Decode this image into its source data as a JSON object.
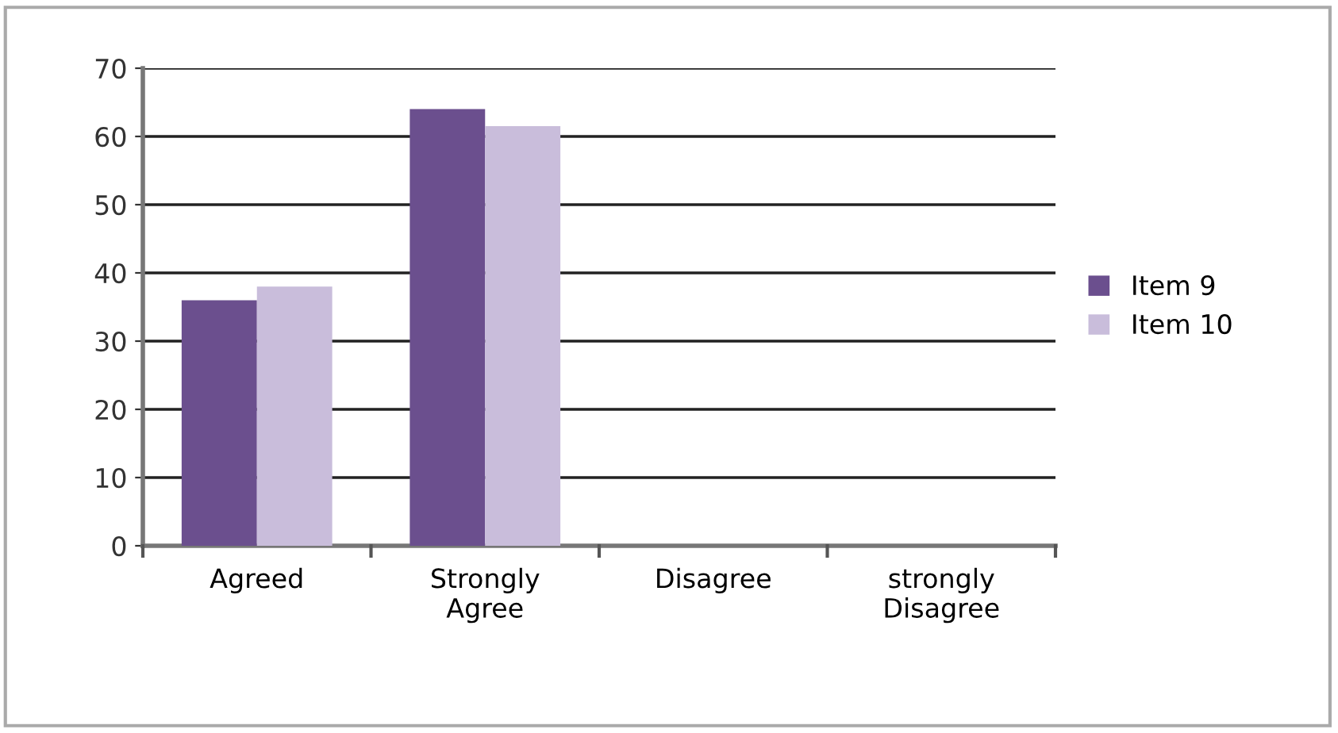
{
  "chart_data": {
    "type": "bar",
    "categories": [
      "Agreed",
      "Strongly\nAgree",
      "Disagree",
      "strongly\nDisagree"
    ],
    "series": [
      {
        "name": "Item 9",
        "color": "#6b4f8e",
        "values": [
          36,
          64,
          0,
          0
        ]
      },
      {
        "name": "Item 10",
        "color": "#c9bddb",
        "values": [
          38,
          61.5,
          0,
          0
        ]
      }
    ],
    "ylim": [
      0,
      70
    ],
    "yticks": [
      0,
      10,
      20,
      30,
      40,
      50,
      60,
      70
    ],
    "grid": "y",
    "legend": "right"
  }
}
